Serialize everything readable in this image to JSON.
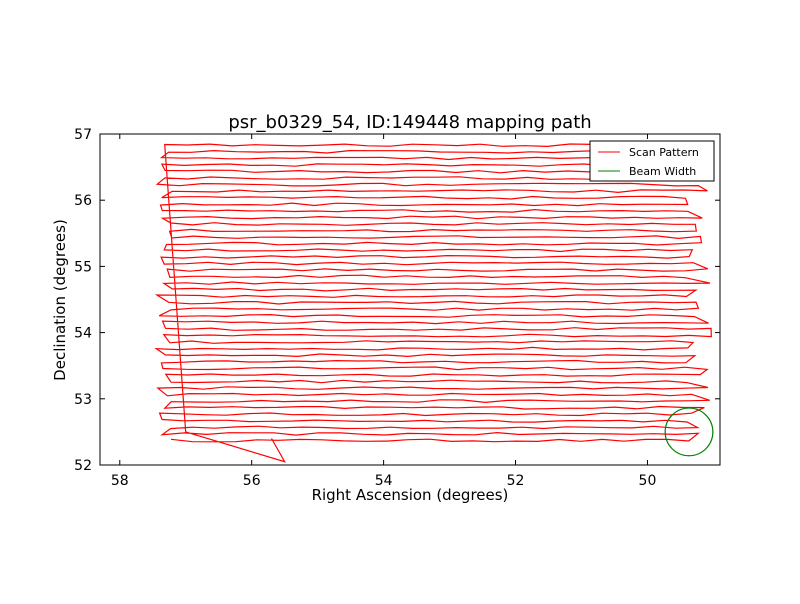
{
  "chart_data": {
    "type": "line",
    "title": "psr_b0329_54, ID:149448 mapping path",
    "xlabel": "Right Ascension (degrees)",
    "ylabel": "Declination (degrees)",
    "xlim": [
      58.3,
      48.9
    ],
    "ylim": [
      52,
      57
    ],
    "x_ticks": [
      58,
      56,
      54,
      52,
      50
    ],
    "x_tick_labels": [
      "58",
      "56",
      "54",
      "52",
      "50"
    ],
    "y_ticks": [
      52,
      53,
      54,
      55,
      56,
      57
    ],
    "y_tick_labels": [
      "52",
      "53",
      "54",
      "55",
      "56",
      "57"
    ],
    "grid": false,
    "legend_position": "top-right",
    "series": [
      {
        "name": "Scan Pattern",
        "kind": "raster-scan",
        "color": "#ff0000",
        "scan_rows": {
          "count": 46,
          "dec_start": 52.37,
          "dec_end": 56.83,
          "ra_east_min": 57.2,
          "ra_east_max": 57.45,
          "ra_west_min": 49.0,
          "ra_west_max": 49.45
        },
        "stray_points": [
          [
            57.0,
            52.5
          ],
          [
            55.5,
            52.05
          ],
          [
            55.7,
            52.4
          ]
        ]
      },
      {
        "name": "Beam Width",
        "kind": "circle",
        "color": "#008000",
        "center": [
          49.37,
          52.5
        ],
        "radius_deg": 0.36
      }
    ]
  }
}
